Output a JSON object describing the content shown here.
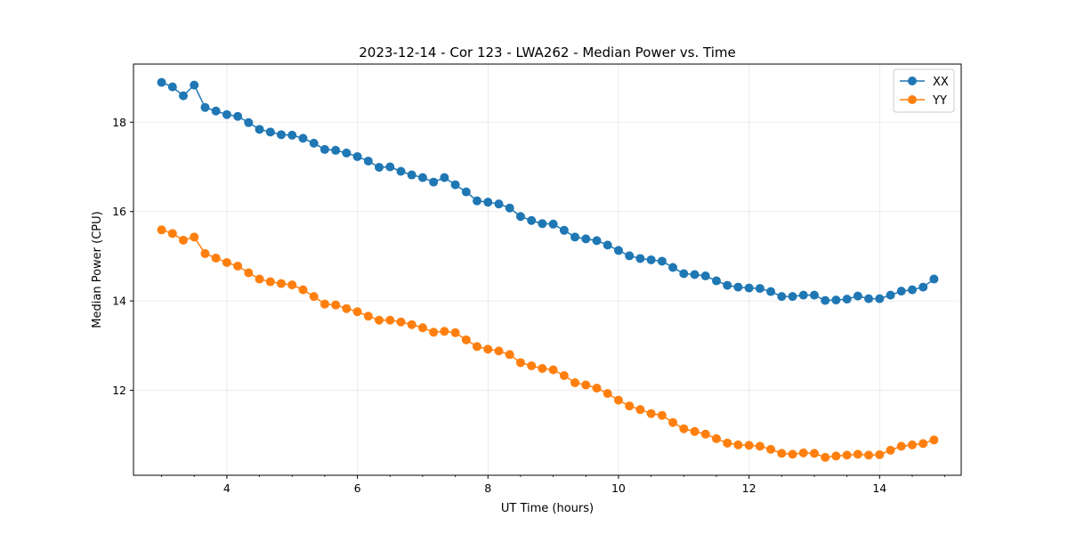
{
  "chart_data": {
    "type": "line",
    "title": "2023-12-14 - Cor 123 - LWA262 - Median Power vs. Time",
    "xlabel": "UT Time (hours)",
    "ylabel": "Median Power (CPU)",
    "xlim": [
      2.57,
      15.25
    ],
    "ylim": [
      10.1,
      19.3
    ],
    "xticks": [
      4,
      6,
      8,
      10,
      12,
      14
    ],
    "xtick_labels": [
      "4",
      "6",
      "8",
      "10",
      "12",
      "14"
    ],
    "yticks": [
      12,
      14,
      16,
      18
    ],
    "ytick_labels": [
      "12",
      "14",
      "16",
      "18"
    ],
    "grid": true,
    "legend_position": "top-right",
    "x": [
      3.0,
      3.167,
      3.333,
      3.5,
      3.667,
      3.833,
      4.0,
      4.167,
      4.333,
      4.5,
      4.667,
      4.833,
      5.0,
      5.167,
      5.333,
      5.5,
      5.667,
      5.833,
      6.0,
      6.167,
      6.333,
      6.5,
      6.667,
      6.833,
      7.0,
      7.167,
      7.333,
      7.5,
      7.667,
      7.833,
      8.0,
      8.167,
      8.333,
      8.5,
      8.667,
      8.833,
      9.0,
      9.167,
      9.333,
      9.5,
      9.667,
      9.833,
      10.0,
      10.167,
      10.333,
      10.5,
      10.667,
      10.833,
      11.0,
      11.167,
      11.333,
      11.5,
      11.667,
      11.833,
      12.0,
      12.167,
      12.333,
      12.5,
      12.667,
      12.833,
      13.0,
      13.167,
      13.333,
      13.5,
      13.667,
      13.833,
      14.0,
      14.167,
      14.333,
      14.5,
      14.667,
      14.833
    ],
    "series": [
      {
        "name": "XX",
        "color": "#1f77b4",
        "values": [
          18.89,
          18.79,
          18.59,
          18.83,
          18.33,
          18.25,
          18.17,
          18.13,
          17.99,
          17.84,
          17.78,
          17.72,
          17.71,
          17.64,
          17.53,
          17.39,
          17.37,
          17.31,
          17.23,
          17.13,
          16.99,
          17.0,
          16.9,
          16.82,
          16.76,
          16.66,
          16.76,
          16.6,
          16.44,
          16.24,
          16.21,
          16.17,
          16.08,
          15.89,
          15.8,
          15.73,
          15.72,
          15.58,
          15.43,
          15.39,
          15.35,
          15.25,
          15.13,
          15.01,
          14.95,
          14.92,
          14.89,
          14.75,
          14.61,
          14.59,
          14.56,
          14.45,
          14.35,
          14.31,
          14.29,
          14.28,
          14.21,
          14.1,
          14.1,
          14.13,
          14.13,
          14.01,
          14.02,
          14.04,
          14.11,
          14.05,
          14.05,
          14.13,
          14.22,
          14.25,
          14.31,
          14.49
        ]
      },
      {
        "name": "YY",
        "color": "#ff7f0e",
        "values": [
          15.59,
          15.51,
          15.36,
          15.43,
          15.06,
          14.96,
          14.86,
          14.78,
          14.63,
          14.49,
          14.43,
          14.39,
          14.36,
          14.25,
          14.1,
          13.93,
          13.91,
          13.83,
          13.76,
          13.66,
          13.57,
          13.57,
          13.53,
          13.47,
          13.4,
          13.3,
          13.32,
          13.29,
          13.13,
          12.98,
          12.92,
          12.88,
          12.8,
          12.62,
          12.55,
          12.49,
          12.46,
          12.33,
          12.17,
          12.12,
          12.05,
          11.93,
          11.78,
          11.65,
          11.57,
          11.48,
          11.44,
          11.28,
          11.14,
          11.08,
          11.02,
          10.92,
          10.82,
          10.78,
          10.77,
          10.75,
          10.68,
          10.59,
          10.57,
          10.6,
          10.59,
          10.5,
          10.53,
          10.55,
          10.57,
          10.55,
          10.56,
          10.66,
          10.75,
          10.78,
          10.81,
          10.89
        ]
      }
    ]
  }
}
